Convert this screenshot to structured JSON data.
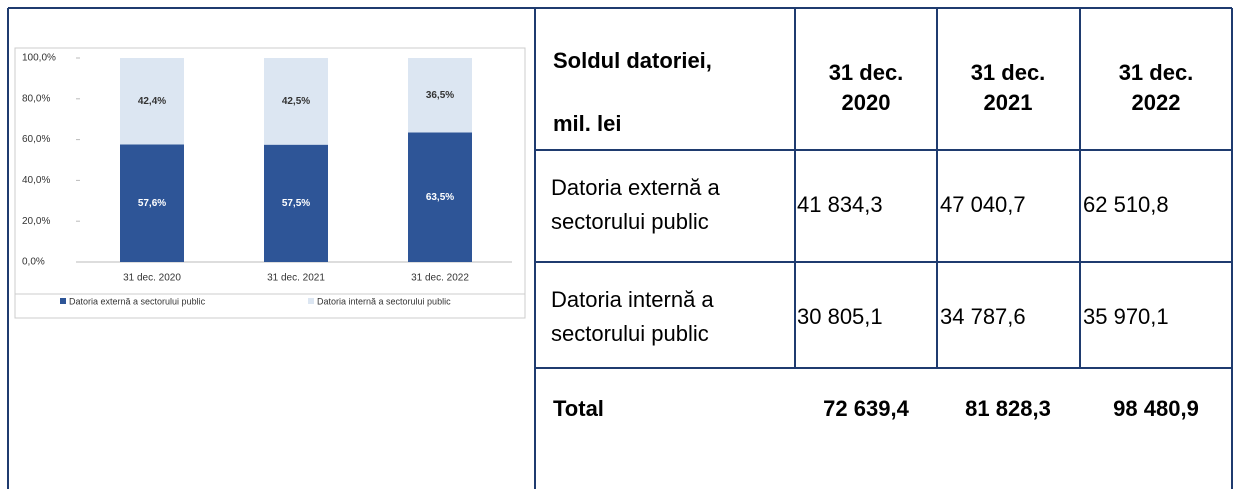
{
  "chart_data": {
    "type": "bar",
    "stacked": true,
    "categories": [
      "31 dec. 2020",
      "31 dec. 2021",
      "31 dec. 2022"
    ],
    "series": [
      {
        "name": "Datoria externă a sectorului public",
        "color": "#2e5597",
        "values": [
          57.6,
          57.5,
          63.5
        ],
        "value_labels": [
          "57,6%",
          "57,5%",
          "63,5%"
        ]
      },
      {
        "name": "Datoria internă a sectorului public",
        "color": "#dce6f2",
        "values": [
          42.4,
          42.5,
          36.5
        ],
        "value_labels": [
          "42,4%",
          "42,5%",
          "36,5%"
        ]
      }
    ],
    "ylim": [
      0,
      100
    ],
    "yticks": [
      {
        "value": 0,
        "label": "0,0%"
      },
      {
        "value": 20,
        "label": "20,0%"
      },
      {
        "value": 40,
        "label": "40,0%"
      },
      {
        "value": 60,
        "label": "60,0%"
      },
      {
        "value": 80,
        "label": "80,0%"
      },
      {
        "value": 100,
        "label": "100,0%"
      }
    ],
    "legend": "bottom"
  },
  "table": {
    "header": [
      [
        "Soldul datoriei,",
        "mil. lei"
      ],
      [
        "31 dec.",
        "2020"
      ],
      [
        "31 dec.",
        "2021"
      ],
      [
        "31 dec.",
        "2022"
      ]
    ],
    "rows": [
      [
        [
          "Datoria externă a",
          "sectorului public"
        ],
        "41 834,3",
        "47 040,7",
        "62 510,8"
      ],
      [
        [
          "Datoria internă a",
          "sectorului public"
        ],
        "30 805,1",
        "34 787,6",
        "35 970,1"
      ],
      [
        "Total",
        "72 639,4",
        "81 828,3",
        "98 480,9"
      ]
    ]
  }
}
